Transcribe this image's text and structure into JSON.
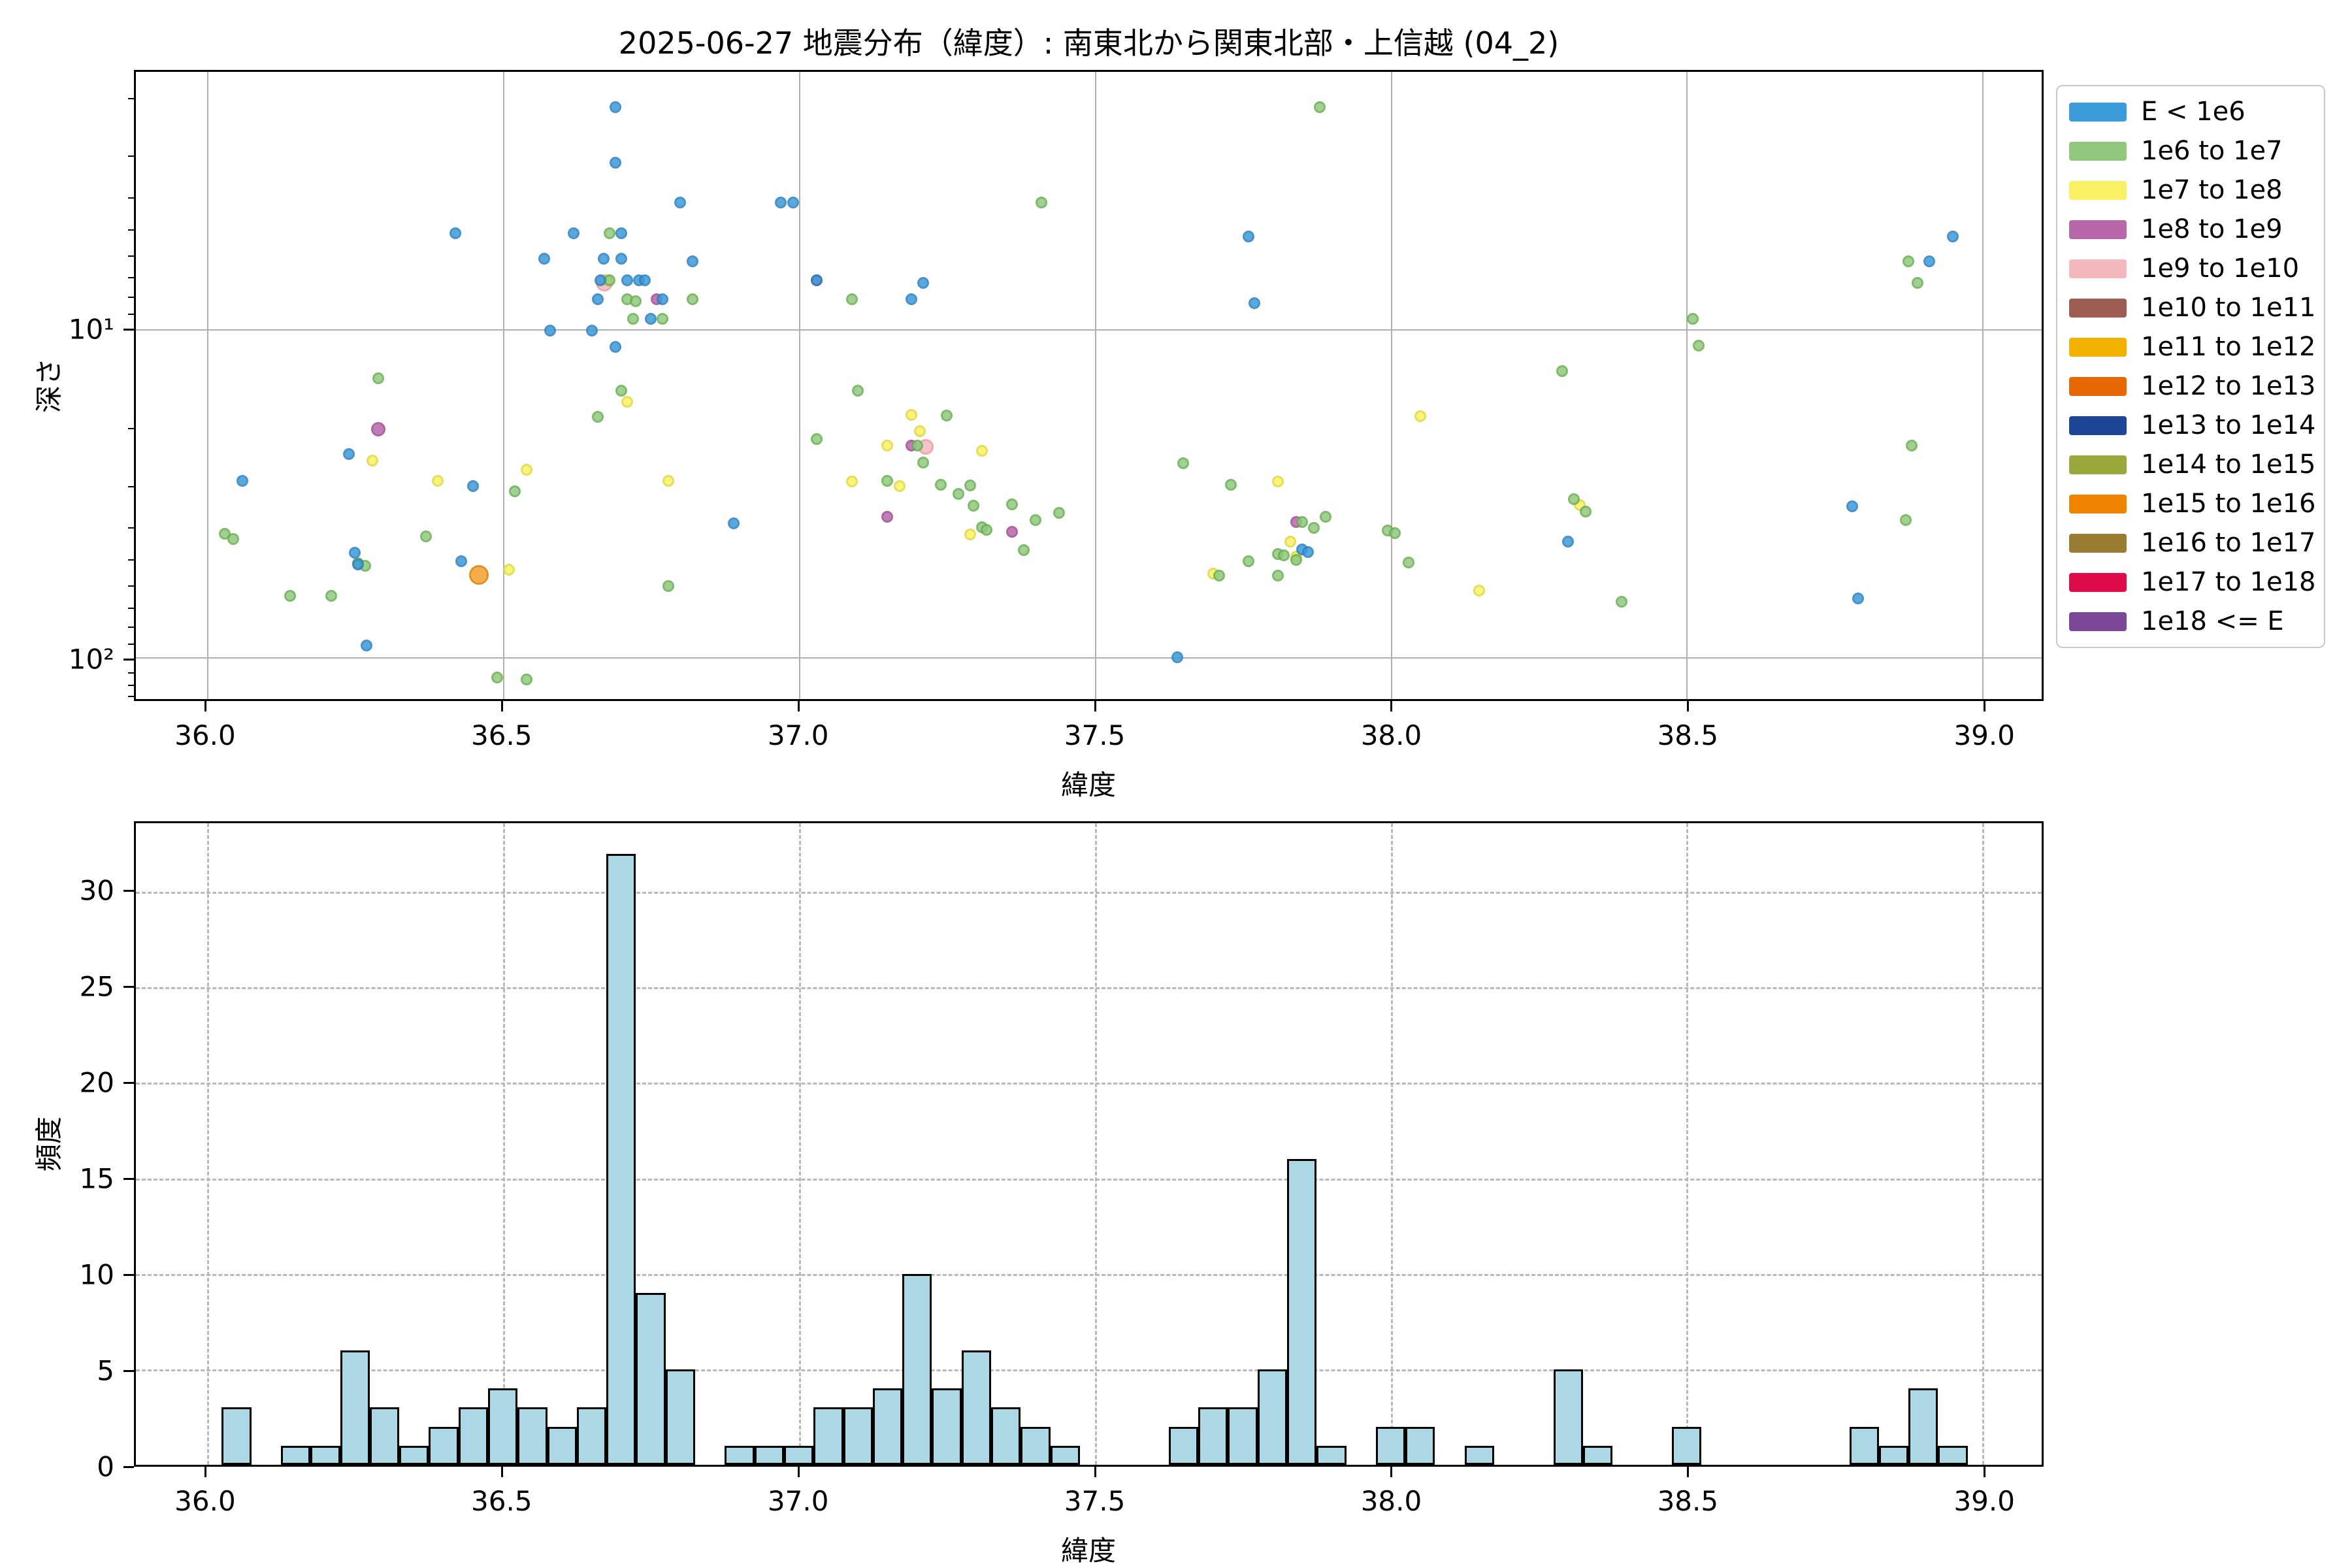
{
  "title": "2025-06-27 地震分布（緯度）: 南東北から関東北部・上信越 (04_2)",
  "legend": {
    "items": [
      {
        "label": "E < 1e6",
        "color": "#3c9bd9"
      },
      {
        "label": "1e6 to 1e7",
        "color": "#90c97d"
      },
      {
        "label": "1e7 to 1e8",
        "color": "#f8f163"
      },
      {
        "label": "1e8 to 1e9",
        "color": "#b867ab"
      },
      {
        "label": "1e9 to 1e10",
        "color": "#f4b9bf"
      },
      {
        "label": "1e10 to 1e11",
        "color": "#9c5b53"
      },
      {
        "label": "1e11 to 1e12",
        "color": "#f3b200"
      },
      {
        "label": "1e12 to 1e13",
        "color": "#e96806"
      },
      {
        "label": "1e13 to 1e14",
        "color": "#1d4796"
      },
      {
        "label": "1e14 to 1e15",
        "color": "#9ba83d"
      },
      {
        "label": "1e15 to 1e16",
        "color": "#f18400"
      },
      {
        "label": "1e16 to 1e17",
        "color": "#997c31"
      },
      {
        "label": "1e17 to 1e18",
        "color": "#de0d49"
      },
      {
        "label": "1e18 <= E",
        "color": "#7b4796"
      }
    ]
  },
  "chart_data": [
    {
      "type": "scatter",
      "xlabel": "緯度",
      "ylabel": "深さ",
      "xlim": [
        35.88,
        39.1
      ],
      "depth_top": 1.64,
      "depth_bottom": 134,
      "yscale": "log-inverted",
      "xticks": [
        36.0,
        36.5,
        37.0,
        37.5,
        38.0,
        38.5,
        39.0
      ],
      "xtick_labels": [
        "36.0",
        "36.5",
        "37.0",
        "37.5",
        "38.0",
        "38.5",
        "39.0"
      ],
      "yticks": [
        {
          "value": 10,
          "label": "10¹"
        },
        {
          "value": 100,
          "label": "10²"
        }
      ],
      "minor_yticks": [
        2,
        3,
        4,
        5,
        6,
        7,
        8,
        9,
        20,
        30,
        40,
        50,
        60,
        70,
        80,
        90,
        110,
        120,
        130
      ],
      "grid": "solid",
      "series": [
        {
          "name": "1e9 to 1e10",
          "fill": "#f4b9bf",
          "edge": "#ec99a5",
          "points": [
            [
              36.672,
              7.2,
              26
            ],
            [
              37.215,
              22.8,
              24
            ]
          ]
        },
        {
          "name": "1e8 to 1e9",
          "fill": "#b867ab",
          "edge": "#9e4c92",
          "points": [
            [
              36.29,
              20.2,
              22
            ],
            [
              36.76,
              8.1
            ],
            [
              37.03,
              7.1
            ],
            [
              37.15,
              37.2
            ],
            [
              37.19,
              22.6
            ],
            [
              37.36,
              41.4
            ],
            [
              37.84,
              38.7
            ]
          ]
        },
        {
          "name": "1e15 to 1e16",
          "fill": "#f5a12b",
          "edge": "#d87f00",
          "points": [
            [
              36.46,
              56,
              30
            ]
          ]
        },
        {
          "name": "1e7 to 1e8",
          "fill": "#f8f163",
          "edge": "#e0d93e",
          "points": [
            [
              36.28,
              25.1
            ],
            [
              36.39,
              29
            ],
            [
              36.51,
              54.1
            ],
            [
              36.54,
              26.8
            ],
            [
              36.677,
              7.1
            ],
            [
              36.71,
              16.6
            ],
            [
              36.78,
              29
            ],
            [
              37.09,
              29.1
            ],
            [
              37.15,
              22.6
            ],
            [
              37.17,
              30
            ],
            [
              37.19,
              18.2
            ],
            [
              37.205,
              20.4
            ],
            [
              37.29,
              42.2
            ],
            [
              37.31,
              23.5
            ],
            [
              37.7,
              55.6
            ],
            [
              37.81,
              29.1
            ],
            [
              37.83,
              44.3
            ],
            [
              37.84,
              49.3
            ],
            [
              38.05,
              18.4
            ],
            [
              38.15,
              62.6
            ],
            [
              38.32,
              34.3
            ]
          ]
        },
        {
          "name": "1e6 to 1e7",
          "fill": "#90c97d",
          "edge": "#69ae54",
          "points": [
            [
              36.03,
              42
            ],
            [
              36.045,
              43.5
            ],
            [
              36.14,
              65
            ],
            [
              36.21,
              65
            ],
            [
              36.255,
              51.5
            ],
            [
              36.268,
              52.5
            ],
            [
              36.29,
              14.1
            ],
            [
              36.37,
              42.8
            ],
            [
              36.49,
              115
            ],
            [
              36.52,
              31.2
            ],
            [
              36.54,
              117
            ],
            [
              36.66,
              18.5
            ],
            [
              36.68,
              5.1
            ],
            [
              36.68,
              7.1
            ],
            [
              36.7,
              15.4
            ],
            [
              36.71,
              8.1
            ],
            [
              36.724,
              8.2
            ],
            [
              36.72,
              9.3
            ],
            [
              36.77,
              9.3
            ],
            [
              36.78,
              60.7
            ],
            [
              36.82,
              8.1
            ],
            [
              37.03,
              21.6
            ],
            [
              37.09,
              8.1
            ],
            [
              37.1,
              15.4
            ],
            [
              37.15,
              29
            ],
            [
              37.2,
              22.6
            ],
            [
              37.21,
              25.5
            ],
            [
              37.24,
              29.8
            ],
            [
              37.25,
              18.3
            ],
            [
              37.27,
              31.8
            ],
            [
              37.29,
              29.9
            ],
            [
              37.295,
              34.4
            ],
            [
              37.31,
              40.1
            ],
            [
              37.317,
              40.9
            ],
            [
              37.36,
              34.1
            ],
            [
              37.38,
              47
            ],
            [
              37.4,
              38.2
            ],
            [
              37.41,
              4.1
            ],
            [
              37.44,
              36.3
            ],
            [
              37.65,
              25.6
            ],
            [
              37.71,
              56.2
            ],
            [
              37.73,
              29.8
            ],
            [
              37.76,
              51
            ],
            [
              37.81,
              48.5
            ],
            [
              37.82,
              48.8
            ],
            [
              37.84,
              50.5
            ],
            [
              37.85,
              38.7
            ],
            [
              37.81,
              56.3
            ],
            [
              37.87,
              40.3
            ],
            [
              37.88,
              2.1
            ],
            [
              37.89,
              37.2
            ],
            [
              37.995,
              41
            ],
            [
              38.007,
              41.8
            ],
            [
              38.03,
              51.3
            ],
            [
              38.29,
              13.4
            ],
            [
              38.31,
              33
            ],
            [
              38.33,
              36
            ],
            [
              38.39,
              67.7
            ],
            [
              38.51,
              9.3
            ],
            [
              38.52,
              11.2
            ],
            [
              38.87,
              38.1
            ],
            [
              38.875,
              6.2
            ],
            [
              38.88,
              22.6
            ],
            [
              38.89,
              7.2
            ]
          ]
        },
        {
          "name": "E < 1e6",
          "fill": "#3c9bd9",
          "edge": "#2b80c0",
          "points": [
            [
              36.06,
              29
            ],
            [
              36.24,
              24
            ],
            [
              36.25,
              48
            ],
            [
              36.255,
              52
            ],
            [
              36.27,
              92
            ],
            [
              36.42,
              5.1
            ],
            [
              36.43,
              51
            ],
            [
              36.45,
              30
            ],
            [
              36.57,
              6.1
            ],
            [
              36.58,
              10.1
            ],
            [
              36.62,
              5.1
            ],
            [
              36.65,
              10.1
            ],
            [
              36.66,
              8.1
            ],
            [
              36.665,
              7.1
            ],
            [
              36.67,
              6.1
            ],
            [
              36.69,
              2.1
            ],
            [
              36.69,
              3.1
            ],
            [
              36.69,
              11.3
            ],
            [
              36.7,
              5.1
            ],
            [
              36.7,
              6.1
            ],
            [
              36.71,
              7.1
            ],
            [
              36.73,
              7.1
            ],
            [
              36.74,
              7.1
            ],
            [
              36.75,
              9.3
            ],
            [
              36.77,
              8.1
            ],
            [
              36.8,
              4.1
            ],
            [
              36.82,
              6.2
            ],
            [
              36.89,
              39
            ],
            [
              36.97,
              4.1
            ],
            [
              36.99,
              4.1
            ],
            [
              37.03,
              7.1
            ],
            [
              37.19,
              8.1
            ],
            [
              37.21,
              7.2
            ],
            [
              37.64,
              100
            ],
            [
              37.76,
              5.2
            ],
            [
              37.77,
              8.3
            ],
            [
              37.85,
              46.8
            ],
            [
              37.86,
              47.7
            ],
            [
              38.3,
              44.3
            ],
            [
              38.78,
              34.7
            ],
            [
              38.79,
              66
            ],
            [
              38.91,
              6.2
            ],
            [
              38.95,
              5.2
            ]
          ]
        }
      ]
    },
    {
      "type": "bar",
      "xlabel": "緯度",
      "ylabel": "頻度",
      "xlim": [
        35.88,
        39.1
      ],
      "ylim": [
        0,
        33.6
      ],
      "xticks": [
        36.0,
        36.5,
        37.0,
        37.5,
        38.0,
        38.5,
        39.0
      ],
      "xtick_labels": [
        "36.0",
        "36.5",
        "37.0",
        "37.5",
        "38.0",
        "38.5",
        "39.0"
      ],
      "yticks": [
        0,
        5,
        10,
        15,
        20,
        25,
        30
      ],
      "grid": "dashed",
      "bar_color": "#add8e6",
      "bar_edge": "#000000",
      "bin_start": 36.025,
      "bin_width": 0.05,
      "counts": [
        3,
        0,
        1,
        1,
        6,
        3,
        1,
        2,
        3,
        4,
        3,
        2,
        3,
        32,
        9,
        5,
        0,
        1,
        1,
        1,
        3,
        3,
        4,
        10,
        4,
        6,
        3,
        2,
        1,
        0,
        0,
        0,
        2,
        3,
        3,
        5,
        16,
        1,
        0,
        2,
        2,
        0,
        1,
        0,
        0,
        5,
        1,
        0,
        0,
        2,
        0,
        0,
        0,
        0,
        0,
        2,
        1,
        4,
        1,
        0
      ]
    }
  ]
}
